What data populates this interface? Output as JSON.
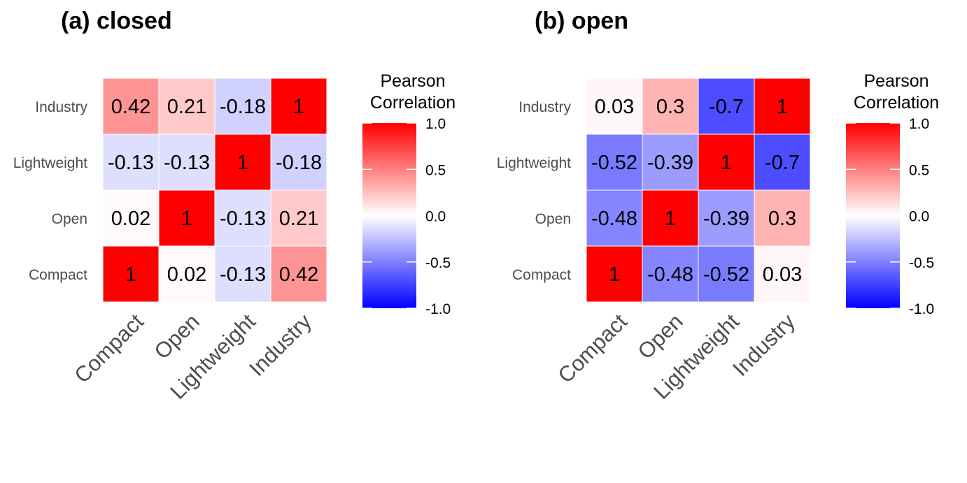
{
  "chart_data": [
    {
      "type": "heatmap",
      "title": "(a) closed",
      "x_categories": [
        "Compact",
        "Open",
        "Lightweight",
        "Industry"
      ],
      "y_categories": [
        "Compact",
        "Open",
        "Lightweight",
        "Industry"
      ],
      "values": [
        [
          "1",
          "0.02",
          "-0.13",
          "0.42"
        ],
        [
          "0.02",
          "1",
          "-0.13",
          "0.21"
        ],
        [
          "-0.13",
          "-0.13",
          "1",
          "-0.18"
        ],
        [
          "0.42",
          "0.21",
          "-0.18",
          "1"
        ]
      ],
      "legend": {
        "title_lines": [
          "Pearson",
          "Correlation"
        ],
        "ticks": [
          "1.0",
          "0.5",
          "0.0",
          "-0.5",
          "-1.0"
        ],
        "range": [
          -1,
          1
        ],
        "placement": "right"
      }
    },
    {
      "type": "heatmap",
      "title": "(b) open",
      "x_categories": [
        "Compact",
        "Open",
        "Lightweight",
        "Industry"
      ],
      "y_categories": [
        "Compact",
        "Open",
        "Lightweight",
        "Industry"
      ],
      "values": [
        [
          "1",
          "-0.48",
          "-0.52",
          "0.03"
        ],
        [
          "-0.48",
          "1",
          "-0.39",
          "0.3"
        ],
        [
          "-0.52",
          "-0.39",
          "1",
          "-0.7"
        ],
        [
          "0.03",
          "0.3",
          "-0.7",
          "1"
        ]
      ],
      "legend": {
        "title_lines": [
          "Pearson",
          "Correlation"
        ],
        "ticks": [
          "1.0",
          "0.5",
          "0.0",
          "-0.5",
          "-1.0"
        ],
        "range": [
          -1,
          1
        ],
        "placement": "right"
      }
    }
  ],
  "colors": {
    "low": "#0000ff",
    "mid": "#ffffff",
    "high": "#ff0000"
  }
}
